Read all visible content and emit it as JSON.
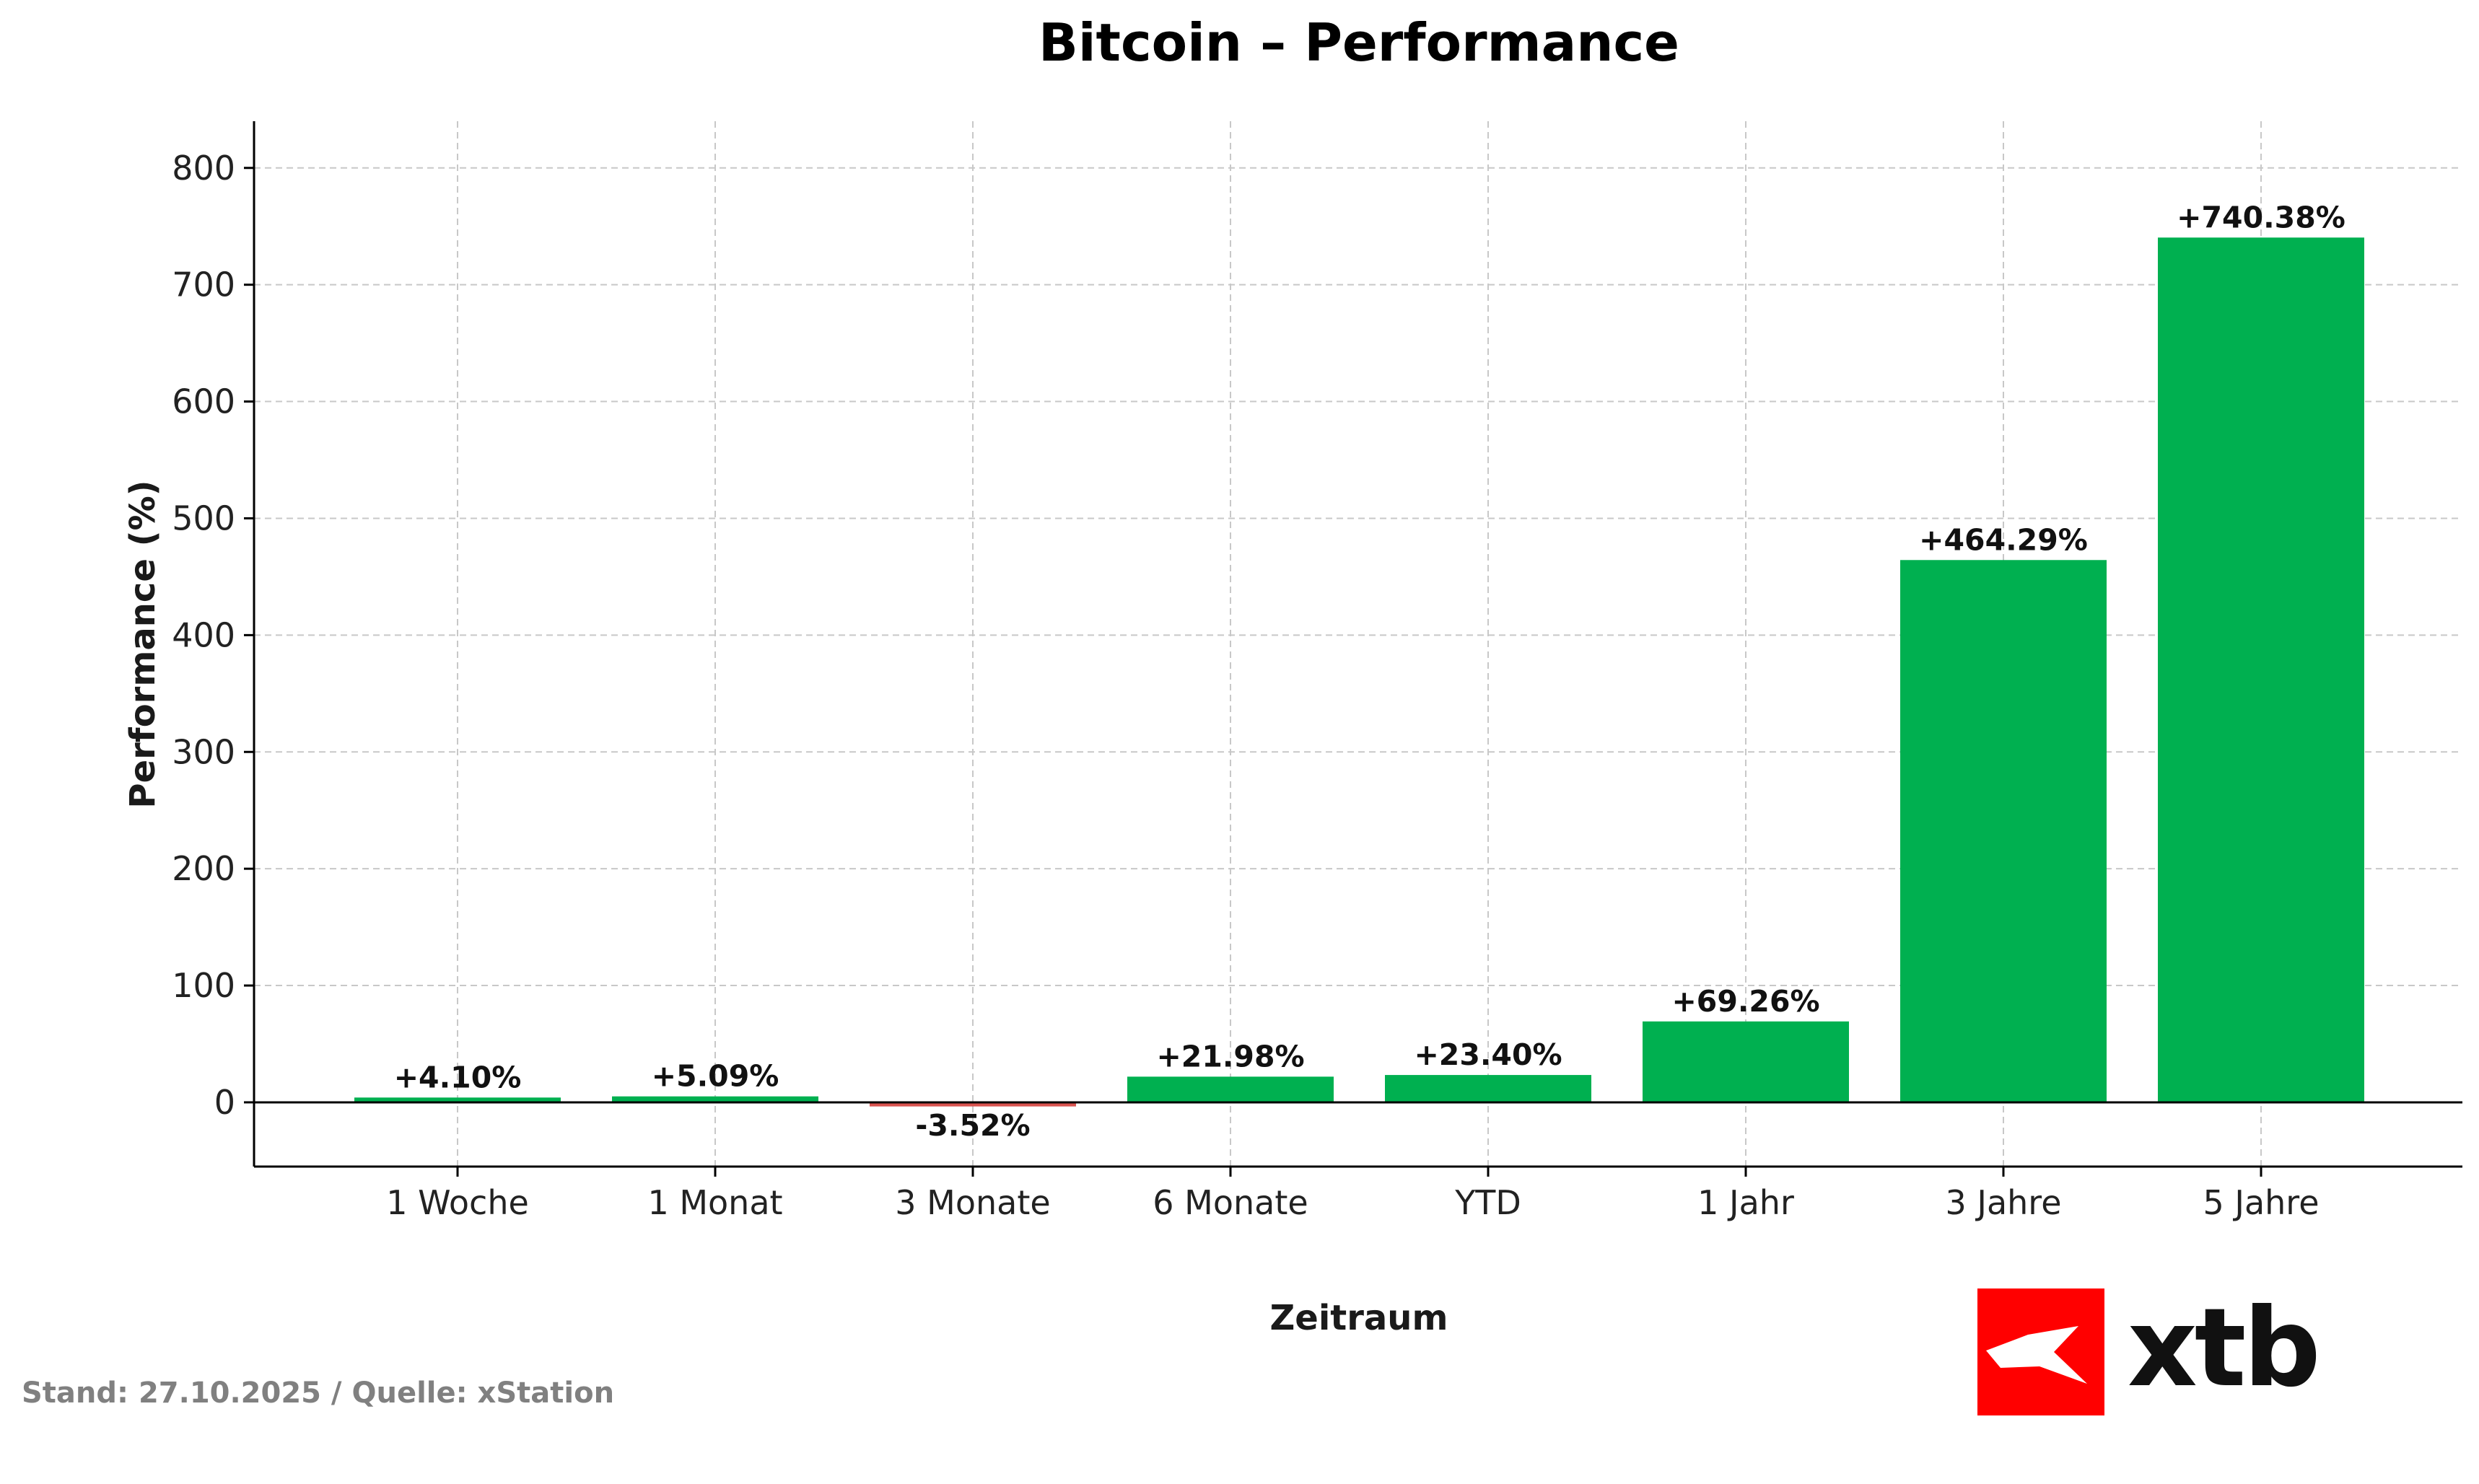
{
  "chart_data": {
    "type": "bar",
    "title": "Bitcoin – Performance",
    "xlabel": "Zeitraum",
    "ylabel": "Performance (%)",
    "categories": [
      "1 Woche",
      "1 Monat",
      "3 Monate",
      "6 Monate",
      "YTD",
      "1 Jahr",
      "3 Jahre",
      "5 Jahre"
    ],
    "values": [
      4.1,
      5.09,
      -3.52,
      21.98,
      23.4,
      69.26,
      464.29,
      740.38
    ],
    "data_labels": [
      "+4.10%",
      "+5.09%",
      "-3.52%",
      "+21.98%",
      "+23.40%",
      "+69.26%",
      "+464.29%",
      "+740.38%"
    ],
    "ylim": [
      -55,
      840
    ],
    "yticks": [
      0,
      100,
      200,
      300,
      400,
      500,
      600,
      700,
      800
    ],
    "ytick_labels": [
      "0",
      "100",
      "200",
      "300",
      "400",
      "500",
      "600",
      "700",
      "800"
    ],
    "grid": true,
    "colors": {
      "positive": "#00b050",
      "negative": "#d9534f",
      "grid": "#c8c8c8",
      "axis": "#000000"
    }
  },
  "footer": {
    "source_note": "Stand: 27.10.2025 / Quelle: xStation"
  },
  "brand": {
    "name": "xtb",
    "accent_color": "#ff0000",
    "icon": "xtb-logo-icon"
  }
}
